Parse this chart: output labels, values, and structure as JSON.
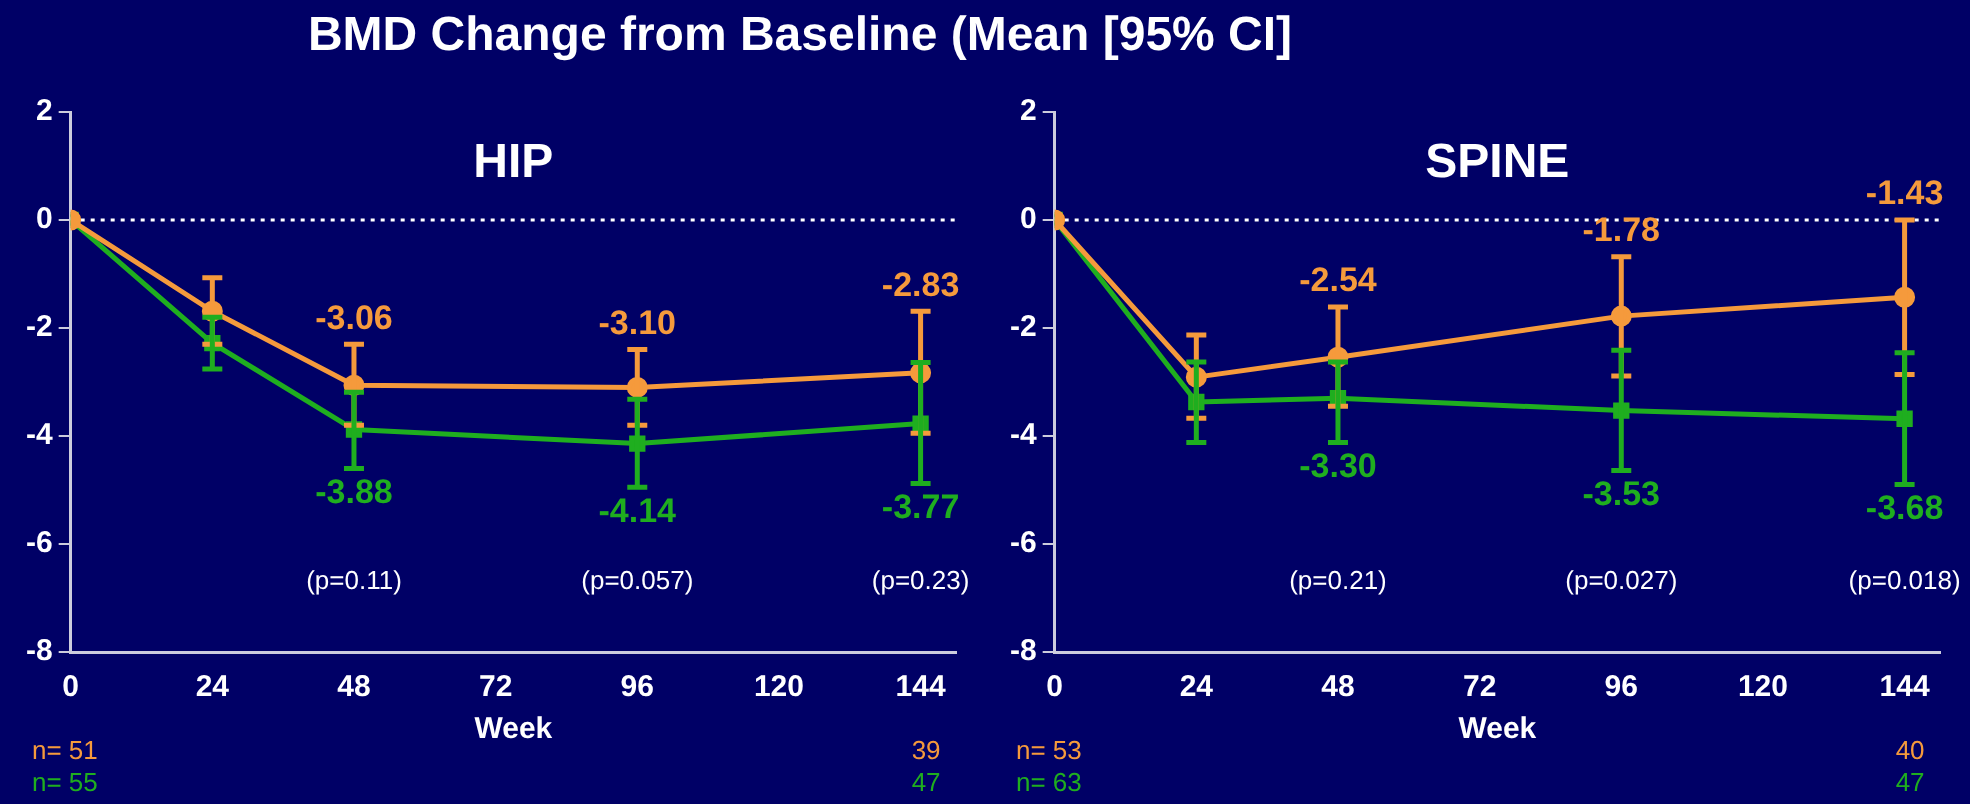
{
  "chart_data": [
    {
      "type": "line",
      "title": "BMD Change from Baseline (Mean [95% CI]",
      "subtitle": "HIP",
      "xlabel": "Week",
      "x": [
        0,
        24,
        48,
        96,
        144
      ],
      "xlim": [
        0,
        150
      ],
      "xticks": [
        0,
        24,
        48,
        72,
        96,
        120,
        144
      ],
      "ylim": [
        -8,
        2
      ],
      "yticks": [
        -8,
        -6,
        -4,
        -2,
        0,
        2
      ],
      "grid": false,
      "legend": false,
      "line_style": "solid",
      "series": [
        {
          "color": "#f59a3c",
          "marker": "circle",
          "values": [
            0,
            -1.69,
            -3.06,
            -3.1,
            -2.83
          ],
          "errors": [
            null,
            [
              -2.3,
              -1.07
            ],
            [
              -3.8,
              -2.3
            ],
            [
              -3.8,
              -2.4
            ],
            [
              -3.95,
              -1.69
            ]
          ],
          "value_labels": [
            null,
            null,
            "-3.06",
            "-3.10",
            "-2.83"
          ]
        },
        {
          "color": "#1fae1f",
          "marker": "square",
          "values": [
            0,
            -2.28,
            -3.88,
            -4.14,
            -3.77
          ],
          "errors": [
            null,
            [
              -2.76,
              -1.8
            ],
            [
              -4.6,
              -3.19
            ],
            [
              -4.95,
              -3.32
            ],
            [
              -4.88,
              -2.64
            ]
          ],
          "value_labels": [
            null,
            null,
            "-3.88",
            "-4.14",
            "-3.77"
          ]
        }
      ],
      "ref_lines": [
        {
          "axis": "y",
          "value": 0,
          "color": "#ffffff",
          "line_style": "dotted"
        }
      ],
      "annotations": [
        "(p=0.11)",
        "(p=0.057)",
        "(p=0.23)",
        "n= 51",
        "n= 55",
        "39",
        "47"
      ]
    },
    {
      "type": "line",
      "subtitle": "SPINE",
      "xlabel": "Week",
      "x": [
        0,
        24,
        48,
        96,
        144
      ],
      "xlim": [
        0,
        150
      ],
      "xticks": [
        0,
        24,
        48,
        72,
        96,
        120,
        144
      ],
      "ylim": [
        -8,
        2
      ],
      "yticks": [
        -8,
        -6,
        -4,
        -2,
        0,
        2
      ],
      "grid": false,
      "legend": false,
      "line_style": "solid",
      "series": [
        {
          "color": "#f59a3c",
          "marker": "circle",
          "values": [
            0,
            -2.91,
            -2.54,
            -1.78,
            -1.43
          ],
          "errors": [
            null,
            [
              -3.67,
              -2.13
            ],
            [
              -3.45,
              -1.61
            ],
            [
              -2.89,
              -0.68
            ],
            [
              -2.86,
              0
            ]
          ],
          "value_labels": [
            null,
            null,
            "-2.54",
            "-1.78",
            "-1.43"
          ]
        },
        {
          "color": "#1fae1f",
          "marker": "square",
          "values": [
            0,
            -3.37,
            -3.3,
            -3.53,
            -3.68
          ],
          "errors": [
            null,
            [
              -4.12,
              -2.63
            ],
            [
              -4.12,
              -2.63
            ],
            [
              -4.64,
              -2.41
            ],
            [
              -4.9,
              -2.46
            ]
          ],
          "value_labels": [
            null,
            null,
            "-3.30",
            "-3.53",
            "-3.68"
          ]
        }
      ],
      "ref_lines": [
        {
          "axis": "y",
          "value": 0,
          "color": "#ffffff",
          "line_style": "dotted"
        }
      ],
      "annotations": [
        "(p=0.21)",
        "(p=0.027)",
        "(p=0.018)",
        "n= 53",
        "n= 63",
        "40",
        "47"
      ]
    }
  ]
}
